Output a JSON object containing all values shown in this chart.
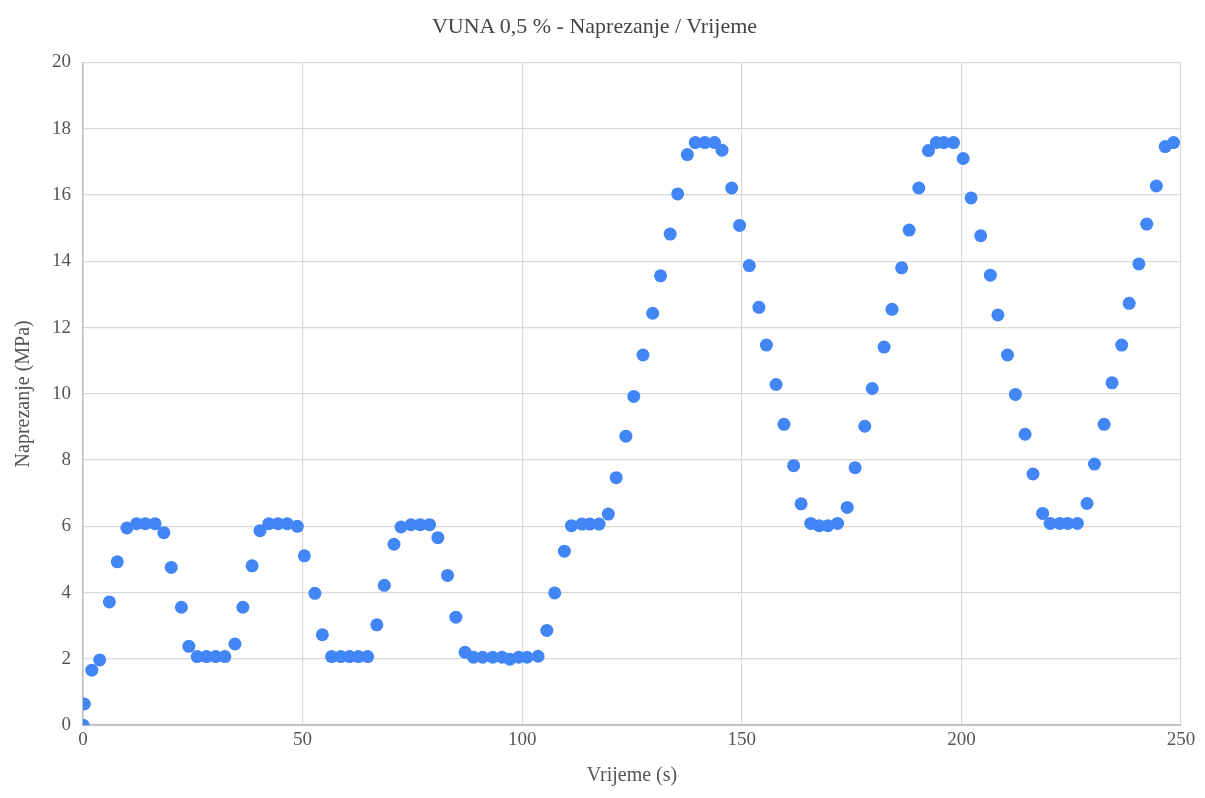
{
  "chart_data": {
    "type": "scatter",
    "title": "VUNA 0,5 % - Naprezanje / Vrijeme",
    "xlabel": "Vrijeme (s)",
    "ylabel": "Naprezanje (MPa)",
    "xlim": [
      0,
      250
    ],
    "xticks": [
      0,
      50,
      100,
      150,
      200,
      250
    ],
    "ylim": [
      0,
      20
    ],
    "yticks": [
      0,
      2,
      4,
      6,
      8,
      10,
      12,
      14,
      16,
      18,
      20
    ],
    "grid": true,
    "legend": false,
    "marker": "circle",
    "series": [
      {
        "color": "#4285f4",
        "x": [
          0,
          0.3,
          2.0,
          3.8,
          6.0,
          7.8,
          10.0,
          12.2,
          14.2,
          16.4,
          18.4,
          20.1,
          22.4,
          24.1,
          26.0,
          28.1,
          30.2,
          32.3,
          34.6,
          36.4,
          38.5,
          40.3,
          42.3,
          44.4,
          46.5,
          48.8,
          50.4,
          52.8,
          54.5,
          56.6,
          58.7,
          60.7,
          62.7,
          64.8,
          66.9,
          68.6,
          70.8,
          72.4,
          74.7,
          76.8,
          78.9,
          80.8,
          83.0,
          84.9,
          87.0,
          88.9,
          91.0,
          93.3,
          95.4,
          97.2,
          99.2,
          101.1,
          103.6,
          105.6,
          107.4,
          109.6,
          111.2,
          113.6,
          115.4,
          117.5,
          119.6,
          121.4,
          123.6,
          125.4,
          127.5,
          129.7,
          131.5,
          133.7,
          135.4,
          137.6,
          139.4,
          141.6,
          143.8,
          145.5,
          147.7,
          149.5,
          151.7,
          153.9,
          155.6,
          157.8,
          159.6,
          161.8,
          163.5,
          165.7,
          167.6,
          169.6,
          171.8,
          174.0,
          175.8,
          178.0,
          179.7,
          182.4,
          184.2,
          186.4,
          188.1,
          190.3,
          192.5,
          194.3,
          196.0,
          198.2,
          200.4,
          202.2,
          204.4,
          206.6,
          208.3,
          210.5,
          212.3,
          214.5,
          216.3,
          218.5,
          220.2,
          222.4,
          224.2,
          226.4,
          228.6,
          230.3,
          232.5,
          234.3,
          236.5,
          238.2,
          240.4,
          242.2,
          244.4,
          246.4,
          248.3
        ],
        "values": [
          0,
          0.64,
          1.66,
          1.97,
          3.72,
          4.93,
          5.95,
          6.08,
          6.08,
          6.08,
          5.81,
          4.76,
          3.56,
          2.38,
          2.07,
          2.07,
          2.07,
          2.07,
          2.45,
          3.56,
          4.81,
          5.87,
          6.08,
          6.08,
          6.08,
          6.0,
          5.11,
          3.98,
          2.73,
          2.07,
          2.07,
          2.07,
          2.07,
          2.07,
          3.03,
          4.22,
          5.46,
          5.98,
          6.05,
          6.05,
          6.05,
          5.66,
          4.52,
          3.26,
          2.2,
          2.05,
          2.05,
          2.05,
          2.05,
          1.99,
          2.05,
          2.05,
          2.08,
          2.86,
          3.99,
          5.25,
          6.02,
          6.07,
          6.07,
          6.07,
          6.37,
          7.47,
          8.72,
          9.92,
          11.17,
          12.43,
          13.56,
          14.82,
          16.03,
          17.22,
          17.58,
          17.58,
          17.58,
          17.35,
          16.21,
          15.08,
          13.87,
          12.61,
          11.47,
          10.28,
          9.08,
          7.83,
          6.68,
          6.09,
          6.02,
          6.02,
          6.09,
          6.57,
          7.77,
          9.02,
          10.16,
          11.41,
          12.55,
          13.8,
          14.94,
          16.21,
          17.34,
          17.58,
          17.58,
          17.58,
          17.1,
          15.91,
          14.77,
          13.58,
          12.38,
          11.17,
          9.98,
          8.78,
          7.58,
          6.39,
          6.09,
          6.09,
          6.09,
          6.09,
          6.69,
          7.88,
          9.08,
          10.33,
          11.47,
          12.73,
          13.92,
          15.12,
          16.27,
          17.46,
          17.58
        ]
      }
    ]
  }
}
